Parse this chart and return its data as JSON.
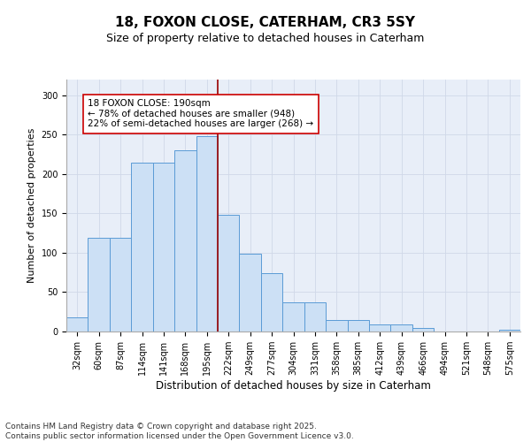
{
  "title1": "18, FOXON CLOSE, CATERHAM, CR3 5SY",
  "title2": "Size of property relative to detached houses in Caterham",
  "xlabel": "Distribution of detached houses by size in Caterham",
  "ylabel": "Number of detached properties",
  "categories": [
    "32sqm",
    "60sqm",
    "87sqm",
    "114sqm",
    "141sqm",
    "168sqm",
    "195sqm",
    "222sqm",
    "249sqm",
    "277sqm",
    "304sqm",
    "331sqm",
    "358sqm",
    "385sqm",
    "412sqm",
    "439sqm",
    "466sqm",
    "494sqm",
    "521sqm",
    "548sqm",
    "575sqm"
  ],
  "values": [
    18,
    119,
    119,
    215,
    215,
    230,
    248,
    148,
    99,
    74,
    37,
    37,
    15,
    15,
    9,
    9,
    4,
    0,
    0,
    0,
    2
  ],
  "bar_color": "#cce0f5",
  "bar_edge_color": "#5b9bd5",
  "vline_x": 6.5,
  "vline_color": "#990000",
  "annotation_text": "18 FOXON CLOSE: 190sqm\n← 78% of detached houses are smaller (948)\n22% of semi-detached houses are larger (268) →",
  "annotation_box_color": "#ffffff",
  "annotation_box_edge": "#cc0000",
  "ylim": [
    0,
    320
  ],
  "yticks": [
    0,
    50,
    100,
    150,
    200,
    250,
    300
  ],
  "grid_color": "#d0d8e8",
  "bg_color": "#e8eef8",
  "plot_bg": "#ffffff",
  "footer": "Contains HM Land Registry data © Crown copyright and database right 2025.\nContains public sector information licensed under the Open Government Licence v3.0.",
  "title1_fontsize": 11,
  "title2_fontsize": 9,
  "xlabel_fontsize": 8.5,
  "ylabel_fontsize": 8,
  "tick_fontsize": 7,
  "footer_fontsize": 6.5,
  "annot_fontsize": 7.5
}
